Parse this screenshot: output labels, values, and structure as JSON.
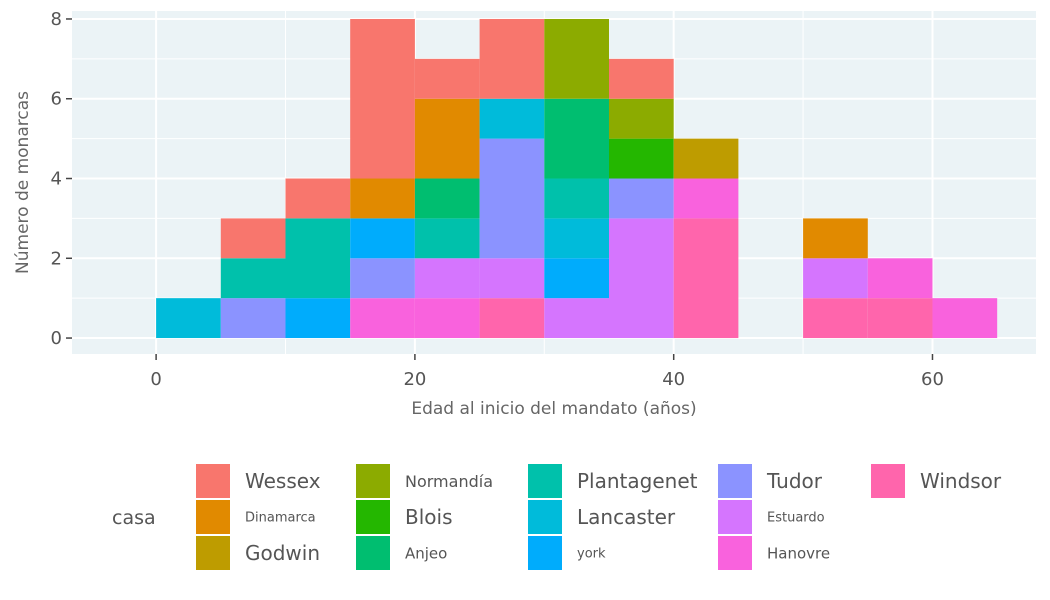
{
  "chart_data": {
    "type": "bar",
    "stacked": true,
    "xlabel": "Edad al inicio del mandato (años)",
    "ylabel": "Número de monarcas",
    "xlim": [
      -6.5,
      68
    ],
    "ylim": [
      -0.4,
      8.2
    ],
    "x_ticks": [
      0,
      20,
      40,
      60
    ],
    "y_ticks": [
      0,
      2,
      4,
      6,
      8
    ],
    "grid": true,
    "background": "#ebf3f6",
    "bin_width": 5,
    "bins": [
      0,
      5,
      10,
      15,
      20,
      25,
      30,
      35,
      40,
      45,
      50,
      55,
      60
    ],
    "legend": {
      "title": "casa",
      "placement": "bottom",
      "columns": [
        [
          "Wessex",
          "Dinamarca",
          "Godwin"
        ],
        [
          "Normandía",
          "Blois",
          "Anjeo"
        ],
        [
          "Plantagenet",
          "Lancaster",
          "york"
        ],
        [
          "Tudor",
          "Estuardo",
          "Hanovre"
        ],
        [
          "Windsor"
        ]
      ]
    },
    "series": [
      {
        "name": "Wessex",
        "color": "#f8766d",
        "values": [
          0,
          1,
          1,
          4,
          1,
          2,
          0,
          1,
          0,
          0,
          0,
          0,
          0
        ]
      },
      {
        "name": "Dinamarca",
        "color": "#e18a00",
        "values": [
          0,
          0,
          0,
          1,
          2,
          0,
          0,
          0,
          0,
          0,
          1,
          0,
          0
        ]
      },
      {
        "name": "Godwin",
        "color": "#be9c00",
        "values": [
          0,
          0,
          0,
          0,
          0,
          0,
          0,
          0,
          1,
          0,
          0,
          0,
          0
        ]
      },
      {
        "name": "Normandía",
        "color": "#8cab00",
        "values": [
          0,
          0,
          0,
          0,
          0,
          0,
          2,
          1,
          0,
          0,
          0,
          0,
          0
        ]
      },
      {
        "name": "Blois",
        "color": "#24b700",
        "values": [
          0,
          0,
          0,
          0,
          0,
          0,
          0,
          1,
          0,
          0,
          0,
          0,
          0
        ]
      },
      {
        "name": "Anjeo",
        "color": "#00be70",
        "values": [
          0,
          0,
          0,
          0,
          1,
          0,
          2,
          0,
          0,
          0,
          0,
          0,
          0
        ]
      },
      {
        "name": "Plantagenet",
        "color": "#00c1ab",
        "values": [
          0,
          1,
          2,
          0,
          1,
          0,
          1,
          0,
          0,
          0,
          0,
          0,
          0
        ]
      },
      {
        "name": "Lancaster",
        "color": "#00bbda",
        "values": [
          1,
          0,
          0,
          0,
          0,
          1,
          1,
          0,
          0,
          0,
          0,
          0,
          0
        ]
      },
      {
        "name": "york",
        "color": "#00acfc",
        "values": [
          0,
          0,
          1,
          1,
          0,
          0,
          1,
          0,
          0,
          0,
          0,
          0,
          0
        ]
      },
      {
        "name": "Tudor",
        "color": "#8b93ff",
        "values": [
          0,
          1,
          0,
          1,
          0,
          3,
          0,
          1,
          0,
          0,
          0,
          0,
          0
        ]
      },
      {
        "name": "Estuardo",
        "color": "#d575fe",
        "values": [
          0,
          0,
          0,
          0,
          1,
          1,
          1,
          3,
          0,
          0,
          1,
          0,
          0
        ]
      },
      {
        "name": "Hanovre",
        "color": "#f962dd",
        "values": [
          0,
          0,
          0,
          1,
          1,
          0,
          0,
          0,
          1,
          0,
          0,
          1,
          1
        ]
      },
      {
        "name": "Windsor",
        "color": "#ff65ac",
        "values": [
          0,
          0,
          0,
          0,
          0,
          1,
          0,
          0,
          3,
          0,
          1,
          1,
          0
        ]
      }
    ]
  }
}
